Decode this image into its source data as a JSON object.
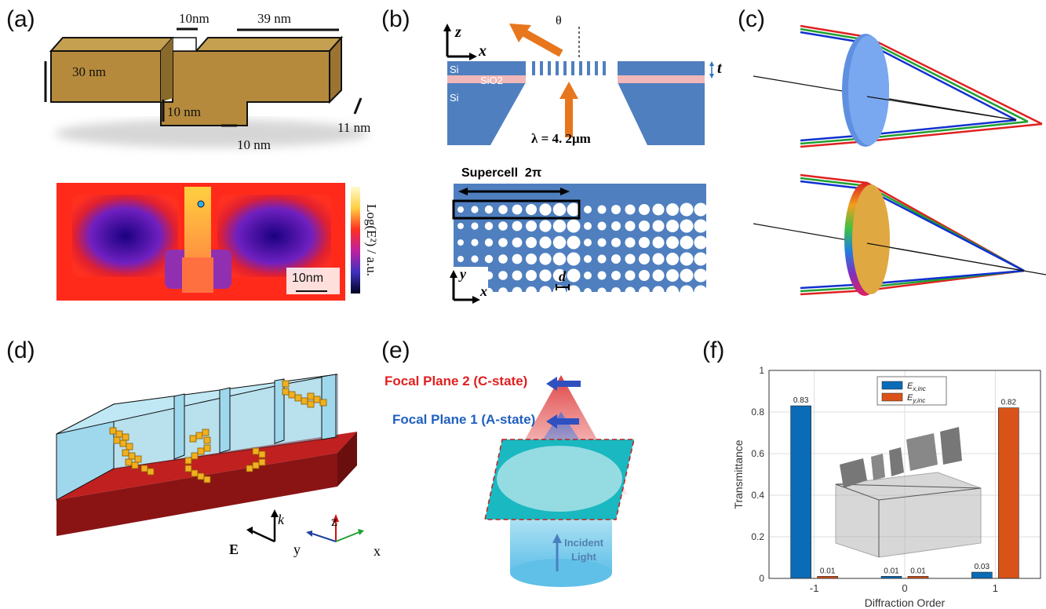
{
  "panels": {
    "a": {
      "label": "(a)",
      "dims": [
        "10nm",
        "39 nm",
        "30 nm",
        "10 nm",
        "11 nm",
        "10 nm"
      ],
      "colorbar_label": "Log(E²) / a.u.",
      "scale_bar": "10nm"
    },
    "b": {
      "label": "(b)",
      "axis_z": "z",
      "axis_x": "x",
      "theta": "θ",
      "layer_si_top": "Si",
      "layer_sio2": "SiO2",
      "layer_si_bottom": "Si",
      "thickness": "t",
      "wavelength": "λ = 4. 2μm",
      "supercell": "Supercell  2π",
      "axis_y2": "y",
      "axis_x2": "x",
      "spacing": "d"
    },
    "c": {
      "label": "(c)"
    },
    "d": {
      "label": "(d)",
      "k": "k",
      "E": "E",
      "ax_y": "y",
      "ax_z": "z",
      "ax_x": "x"
    },
    "e": {
      "label": "(e)",
      "focal2": "Focal Plane 2 (C-state)",
      "focal1": "Focal Plane 1 (A-state)",
      "incident": "Incident Light"
    },
    "f": {
      "label": "(f)"
    }
  },
  "chart_data": {
    "type": "bar",
    "categories": [
      "-1",
      "0",
      "1"
    ],
    "series": [
      {
        "name": "E_x,inc",
        "values": [
          0.83,
          0.01,
          0.03
        ],
        "color": "#0a6bb7"
      },
      {
        "name": "E_y,inc",
        "values": [
          0.01,
          0.01,
          0.82
        ],
        "color": "#d95319"
      }
    ],
    "data_labels": [
      [
        "0.83",
        "0.01",
        "0.03"
      ],
      [
        "0.01",
        "0.01",
        "0.82"
      ]
    ],
    "xlabel": "Diffraction Order",
    "ylabel": "Transmittance",
    "ylim": [
      0,
      1
    ],
    "yticks": [
      "0",
      "0.2",
      "0.4",
      "0.6",
      "0.8",
      "1"
    ],
    "grid": true,
    "legend": "top-center",
    "legend_labels": [
      "E",
      "E"
    ],
    "legend_subs": [
      "x,inc",
      "y,inc"
    ]
  }
}
